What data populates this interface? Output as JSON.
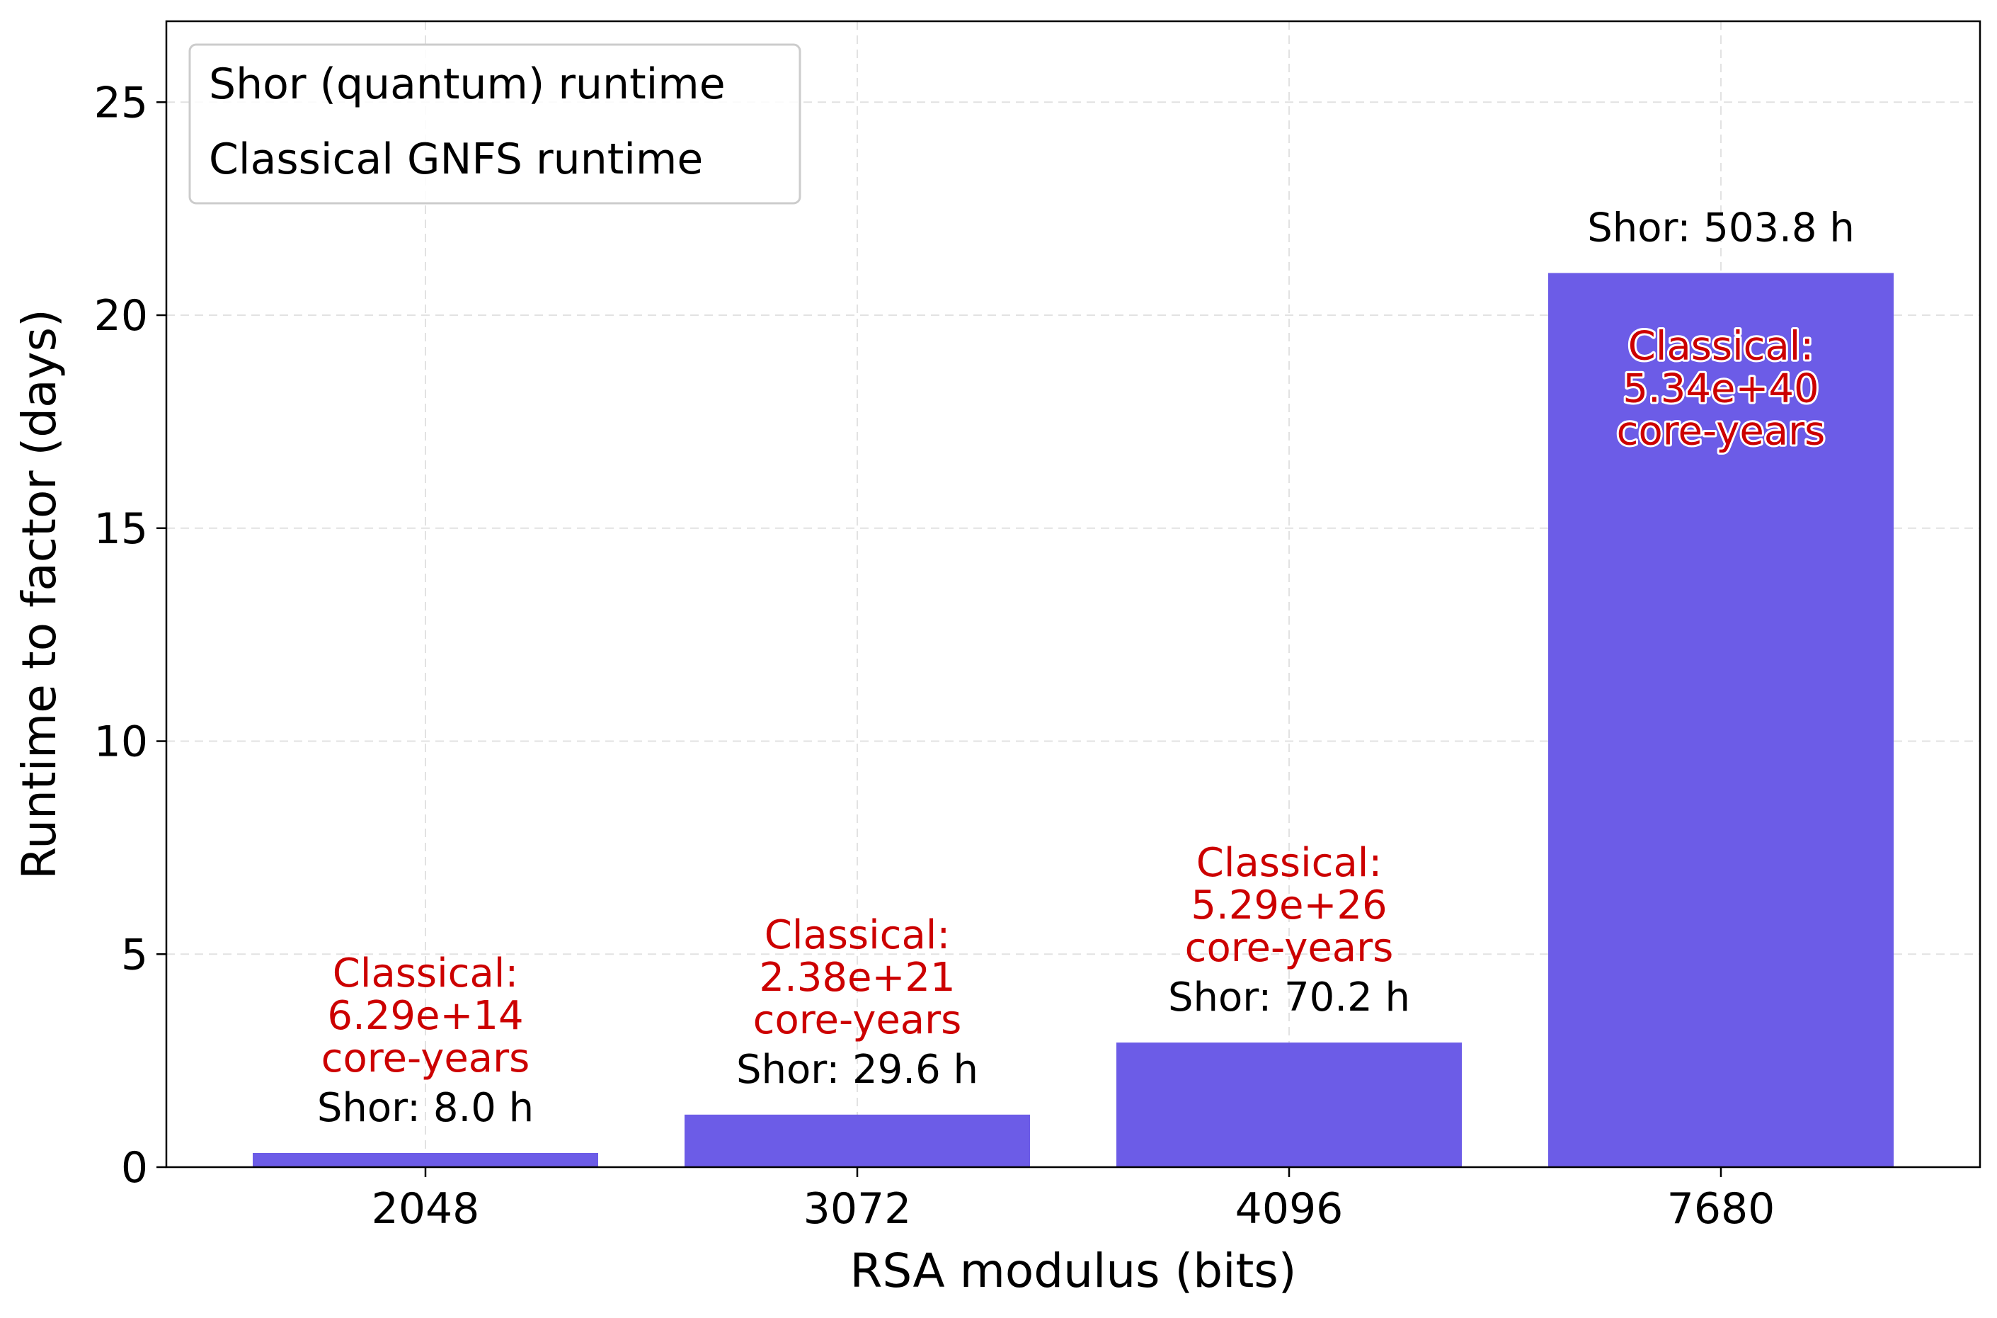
{
  "chart_data": {
    "type": "bar",
    "categories": [
      "2048",
      "3072",
      "4096",
      "7680"
    ],
    "series": [
      {
        "name": "Shor (quantum) runtime",
        "unit": "days",
        "values": [
          0.333,
          1.233,
          2.925,
          20.99
        ]
      }
    ],
    "bar_labels": [
      "Shor: 8.0 h",
      "Shor: 29.6 h",
      "Shor: 70.2 h",
      "Shor: 503.8 h"
    ],
    "classical_labels": [
      [
        "Classical:",
        "6.29e+14",
        "core-years"
      ],
      [
        "Classical:",
        "2.38e+21",
        "core-years"
      ],
      [
        "Classical:",
        "5.29e+26",
        "core-years"
      ],
      [
        "Classical:",
        "5.34e+40",
        "core-years"
      ]
    ],
    "xlabel": "RSA modulus (bits)",
    "ylabel": "Runtime to factor (days)",
    "ylim": [
      0,
      26.9
    ],
    "yticks": [
      0,
      5,
      10,
      15,
      20,
      25
    ],
    "grid": true,
    "legend": {
      "placement": "top-left",
      "entries": [
        "Shor (quantum) runtime",
        "Classical GNFS runtime"
      ]
    },
    "colors": {
      "bar": "#6c5ce7",
      "classical_text": "#cc0000",
      "grid": "#e2e2e2",
      "axis": "#000000"
    }
  }
}
